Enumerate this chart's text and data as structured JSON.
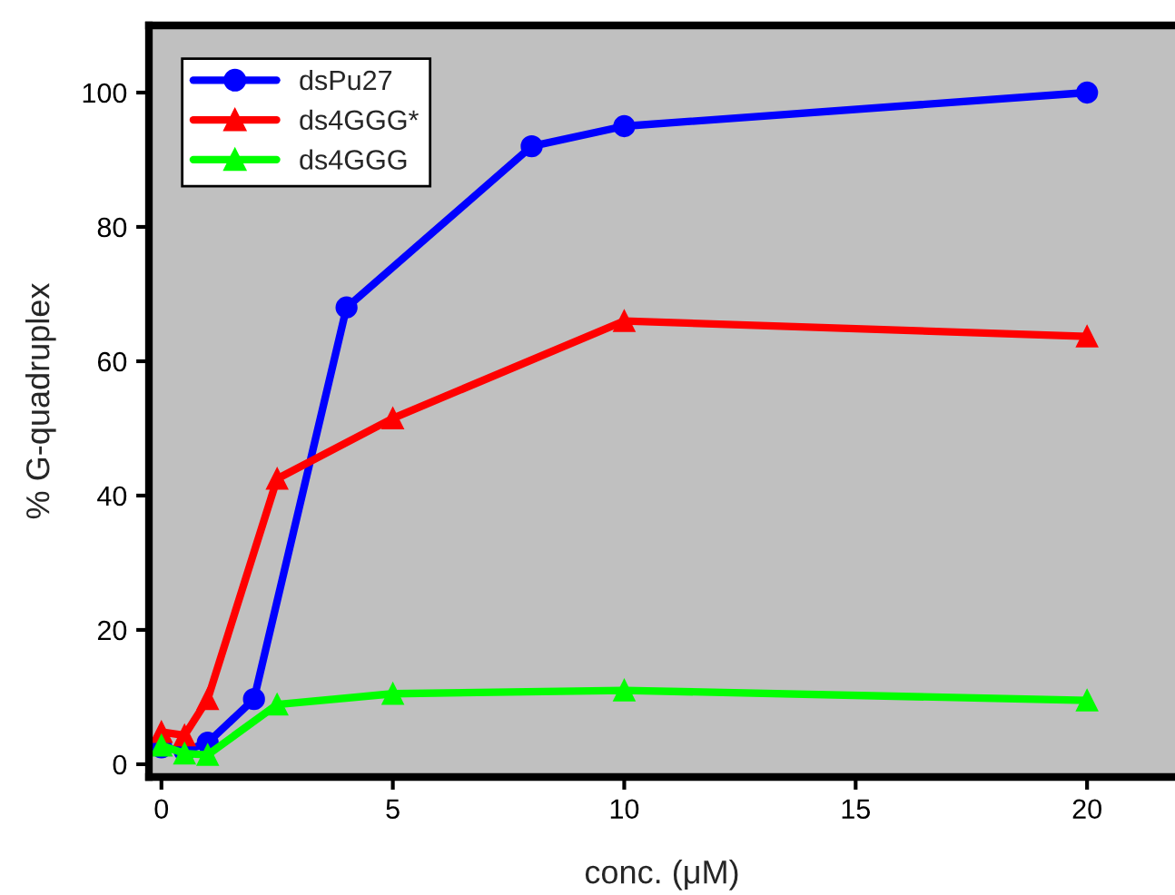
{
  "chart_data": {
    "type": "line",
    "xlabel": "conc. (μM)",
    "ylabel": "% G-quadruplex",
    "xlim": [
      -0.27,
      21.9
    ],
    "ylim": [
      -1.9,
      110
    ],
    "xticks": [
      0,
      5,
      10,
      15,
      20
    ],
    "yticks": [
      0,
      20,
      40,
      60,
      80,
      100
    ],
    "grid": false,
    "legend": "top left",
    "series": [
      {
        "name": "dsPu27",
        "color": "#0000ff",
        "marker": "circle",
        "x": [
          0,
          0.5,
          1,
          2,
          4,
          8,
          10,
          20
        ],
        "values": [
          2.5,
          2,
          3.2,
          9.7,
          68,
          92,
          95,
          100
        ]
      },
      {
        "name": "ds4GGG*",
        "color": "#ff0000",
        "marker": "triangle",
        "x": [
          0,
          0.5,
          1,
          2.5,
          5,
          10,
          20
        ],
        "values": [
          4.8,
          4.3,
          9.7,
          42.5,
          51.5,
          66,
          63.7
        ]
      },
      {
        "name": "ds4GGG",
        "color": "#00ff00",
        "marker": "triangle",
        "x": [
          0,
          0.5,
          1,
          2.5,
          5,
          10,
          20
        ],
        "values": [
          2.8,
          1.6,
          1.4,
          8.9,
          10.5,
          11,
          9.5
        ]
      }
    ]
  }
}
